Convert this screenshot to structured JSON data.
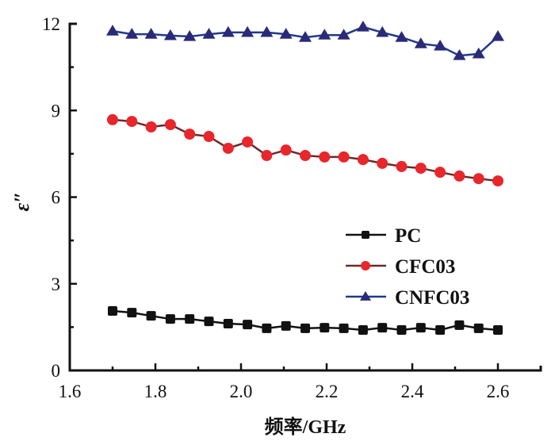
{
  "chart_data": {
    "type": "line",
    "title": "",
    "xlabel": "频率/GHz",
    "ylabel": "ε″",
    "xlim": [
      1.6,
      2.7
    ],
    "ylim": [
      0,
      12
    ],
    "xticks": [
      1.6,
      1.8,
      2.0,
      2.2,
      2.4,
      2.6
    ],
    "xtick_labels": [
      "1.6",
      "1.8",
      "2.0",
      "2.2",
      "2.4",
      "2.6"
    ],
    "yticks": [
      0,
      3,
      6,
      9,
      12
    ],
    "ytick_labels": [
      "0",
      "3",
      "6",
      "9",
      "12"
    ],
    "grid": false,
    "legend_position": "center-right",
    "x": [
      1.7,
      1.745,
      1.79,
      1.835,
      1.88,
      1.925,
      1.97,
      2.015,
      2.06,
      2.105,
      2.15,
      2.195,
      2.24,
      2.285,
      2.33,
      2.375,
      2.42,
      2.465,
      2.51,
      2.555,
      2.6
    ],
    "series": [
      {
        "name": "PC",
        "marker": "square",
        "color": "#111111",
        "values": [
          2.06,
          2.0,
          1.89,
          1.78,
          1.78,
          1.7,
          1.62,
          1.59,
          1.46,
          1.54,
          1.46,
          1.48,
          1.46,
          1.4,
          1.48,
          1.4,
          1.48,
          1.4,
          1.57,
          1.46,
          1.4
        ]
      },
      {
        "name": "CFC03",
        "marker": "circle",
        "color": "#e8262b",
        "line_color": "#6b2a2a",
        "values": [
          8.68,
          8.62,
          8.43,
          8.51,
          8.18,
          8.1,
          7.69,
          7.91,
          7.44,
          7.63,
          7.44,
          7.39,
          7.39,
          7.3,
          7.17,
          7.06,
          7.0,
          6.86,
          6.73,
          6.64,
          6.56
        ]
      },
      {
        "name": "CNFC03",
        "marker": "triangle",
        "color": "#2a2a78",
        "line_color": "#1e3a8a",
        "values": [
          11.75,
          11.64,
          11.64,
          11.59,
          11.56,
          11.64,
          11.7,
          11.7,
          11.7,
          11.64,
          11.53,
          11.61,
          11.61,
          11.89,
          11.7,
          11.53,
          11.31,
          11.23,
          10.9,
          10.96,
          11.56
        ]
      }
    ]
  }
}
